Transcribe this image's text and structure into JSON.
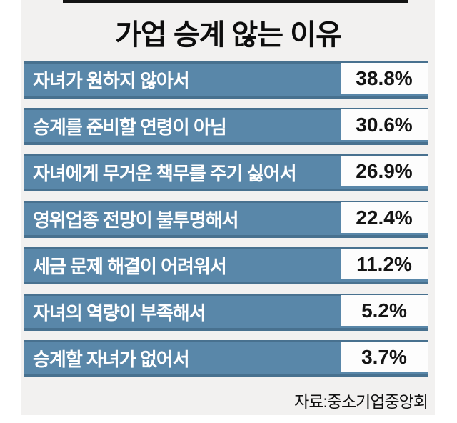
{
  "title": "가업 승계 않는 이유",
  "source": "자료:중소기업중앙회",
  "colors": {
    "panel_bg": "#f2f1f0",
    "bar_fill": "#5987a9",
    "bar_edge": "#48718f",
    "value_box_bg": "#fdfdfd",
    "title_text": "#0d0d0d",
    "bar_text": "#ffffff",
    "value_text": "#141414",
    "top_rule": "#141414"
  },
  "chart_data": {
    "type": "bar",
    "orientation": "horizontal",
    "title": "가업 승계 않는 이유",
    "unit": "%",
    "categories": [
      "자녀가 원하지 않아서",
      "승계를 준비할 연령이 아님",
      "자녀에게 무거운 책무를 주기 싫어서",
      "영위업종 전망이 불투명해서",
      "세금 문제 해결이 어려워서",
      "자녀의 역량이 부족해서",
      "승계할 자녀가 없어서"
    ],
    "values": [
      38.8,
      30.6,
      26.9,
      22.4,
      11.2,
      5.2,
      3.7
    ],
    "value_labels": [
      "38.8%",
      "30.6%",
      "26.9%",
      "22.4%",
      "11.2%",
      "5.2%",
      "3.7%"
    ],
    "source": "자료:중소기업중앙회",
    "layout": "equal-width label bars with value text in white boxes at right",
    "grid": false,
    "legend": false
  }
}
